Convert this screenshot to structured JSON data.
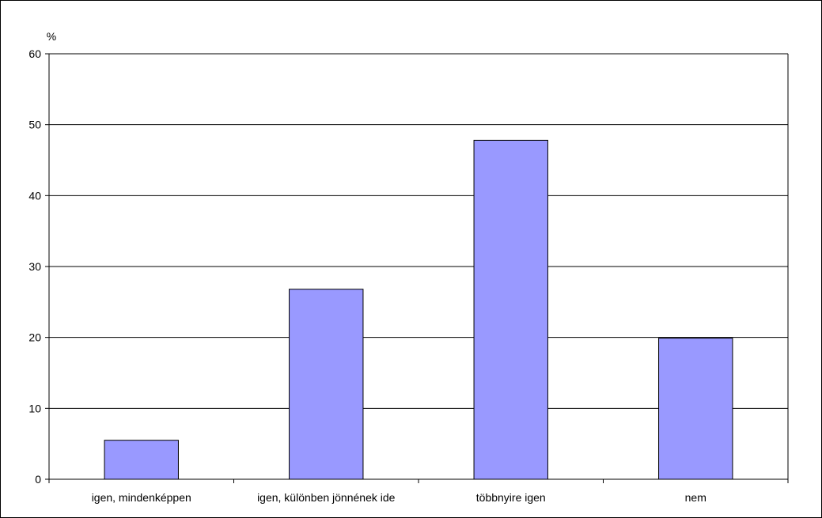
{
  "chart_data": {
    "type": "bar",
    "title": "",
    "xlabel": "",
    "ylabel": "%",
    "categories": [
      "igen, mindenképpen",
      "igen, különben jönnének ide",
      "többnyire igen",
      "nem"
    ],
    "values": [
      5.5,
      26.8,
      47.8,
      19.9
    ],
    "ylim": [
      0,
      60
    ],
    "yticks": [
      0,
      10,
      20,
      30,
      40,
      50,
      60
    ],
    "grid": true,
    "legend": "none",
    "bar_color": "#9999ff",
    "bar_edge_color": "#000000"
  }
}
